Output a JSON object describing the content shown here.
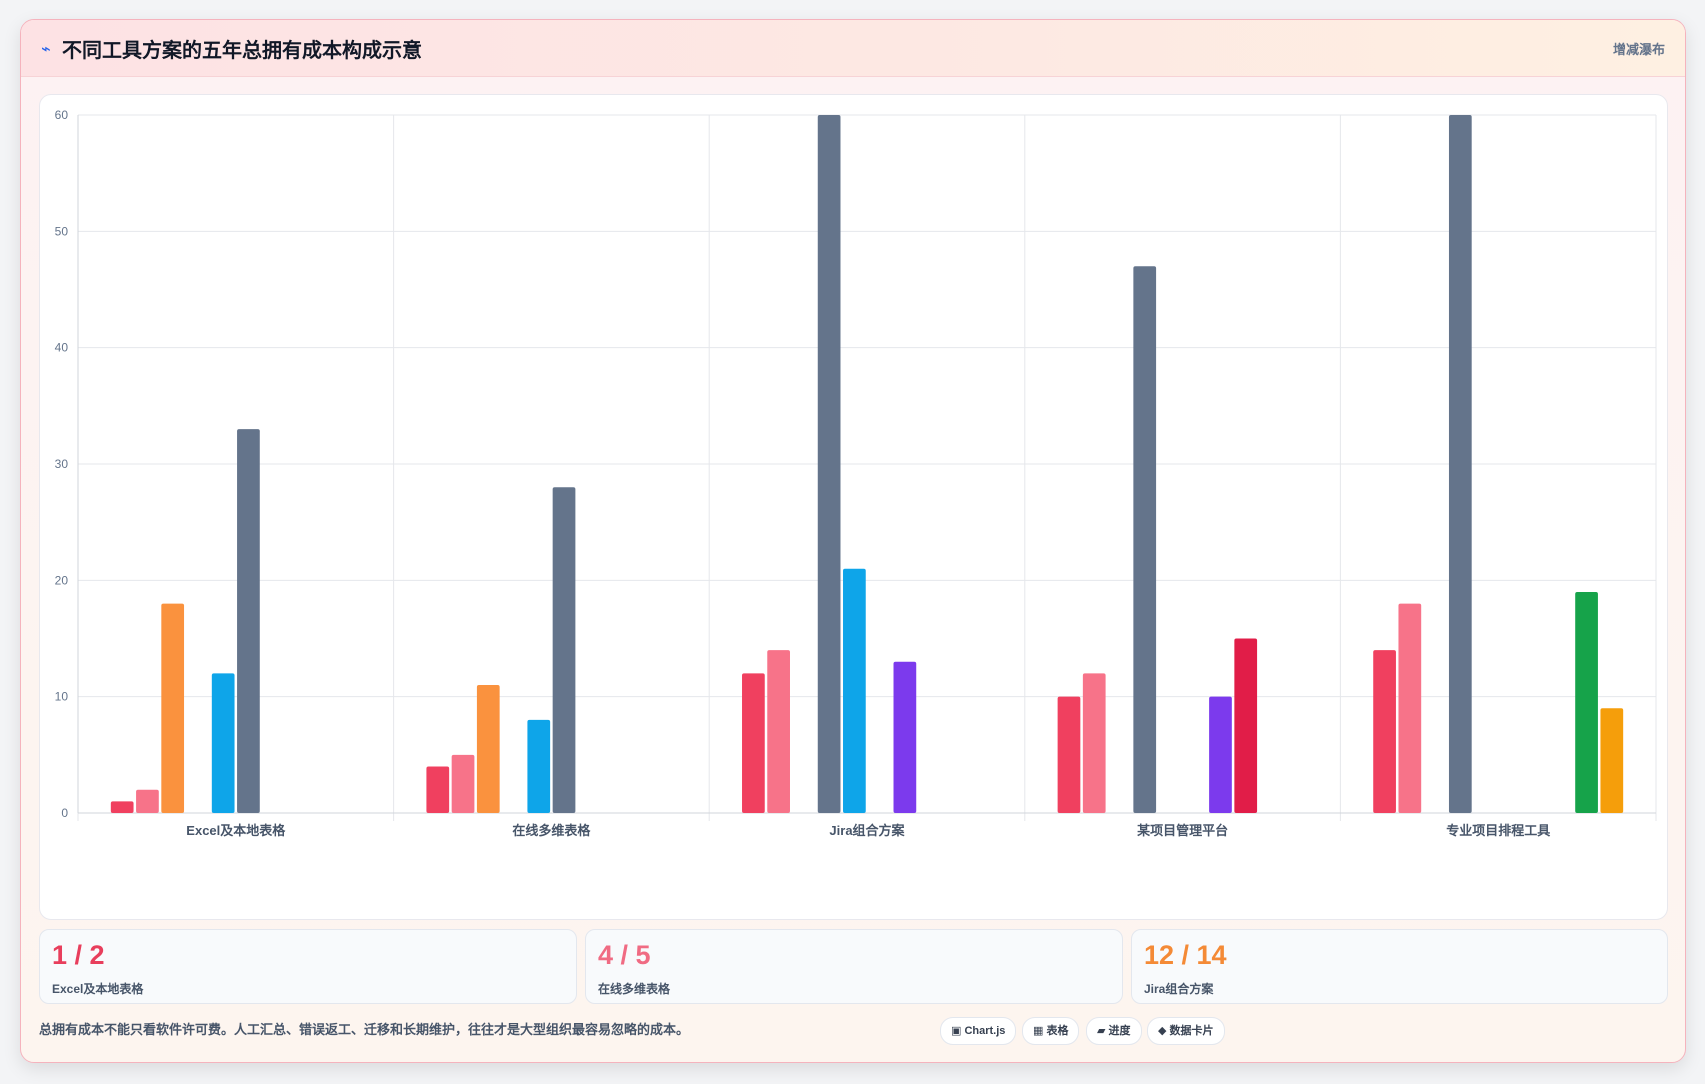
{
  "header": {
    "icon": "lightning-icon",
    "icon_glyph": "⌁",
    "title": "不同工具方案的五年总拥有成本构成示意",
    "action_label": "增减瀑布"
  },
  "chart_data": {
    "type": "bar",
    "categories": [
      "Excel及本地表格",
      "在线多维表格",
      "Jira组合方案",
      "某项目管理平台",
      "专业项目排程工具"
    ],
    "ylim": [
      0,
      60
    ],
    "yticks": [
      0,
      10,
      20,
      30,
      40,
      50,
      60
    ],
    "grid": true,
    "legend": "none",
    "series": [
      {
        "color": "#f0405f",
        "values": [
          1,
          4,
          12,
          10,
          14
        ]
      },
      {
        "color": "#f77389",
        "values": [
          2,
          5,
          14,
          12,
          18
        ]
      },
      {
        "color": "#fa923e",
        "values": [
          18,
          11,
          0,
          0,
          0
        ]
      },
      {
        "color": "#64748b",
        "values": [
          null,
          null,
          60,
          47,
          60
        ]
      },
      {
        "color": "#0ea5e9",
        "values": [
          12,
          8,
          21,
          0,
          0
        ]
      },
      {
        "color": "#64748b",
        "values": [
          33,
          28,
          null,
          null,
          null
        ]
      },
      {
        "color": "#7c3aed",
        "values": [
          0,
          0,
          13,
          10,
          0
        ]
      },
      {
        "color": "#e11d48",
        "values": [
          0,
          0,
          0,
          15,
          0
        ]
      },
      {
        "color": "#16a34a",
        "values": [
          0,
          0,
          0,
          0,
          19
        ]
      },
      {
        "color": "#f59e0b",
        "values": [
          0,
          0,
          0,
          0,
          9
        ]
      }
    ]
  },
  "stats": [
    {
      "value": "1 / 2",
      "label": "Excel及本地表格",
      "color": "#e83e5c"
    },
    {
      "value": "4 / 5",
      "label": "在线多维表格",
      "color": "#f06b83"
    },
    {
      "value": "12 / 14",
      "label": "Jira组合方案",
      "color": "#f48a36"
    }
  ],
  "footnote": "总拥有成本不能只看软件许可费。人工汇总、错误返工、迁移和长期维护，往往才是大型组织最容易忽略的成本。",
  "chips": [
    {
      "icon": "chart-icon",
      "label": "▣ Chart.js"
    },
    {
      "icon": "table-icon",
      "label": "▦ 表格"
    },
    {
      "icon": "progress-icon",
      "label": "▰ 进度"
    },
    {
      "icon": "data-card-icon",
      "label": "◆ 数据卡片"
    }
  ]
}
